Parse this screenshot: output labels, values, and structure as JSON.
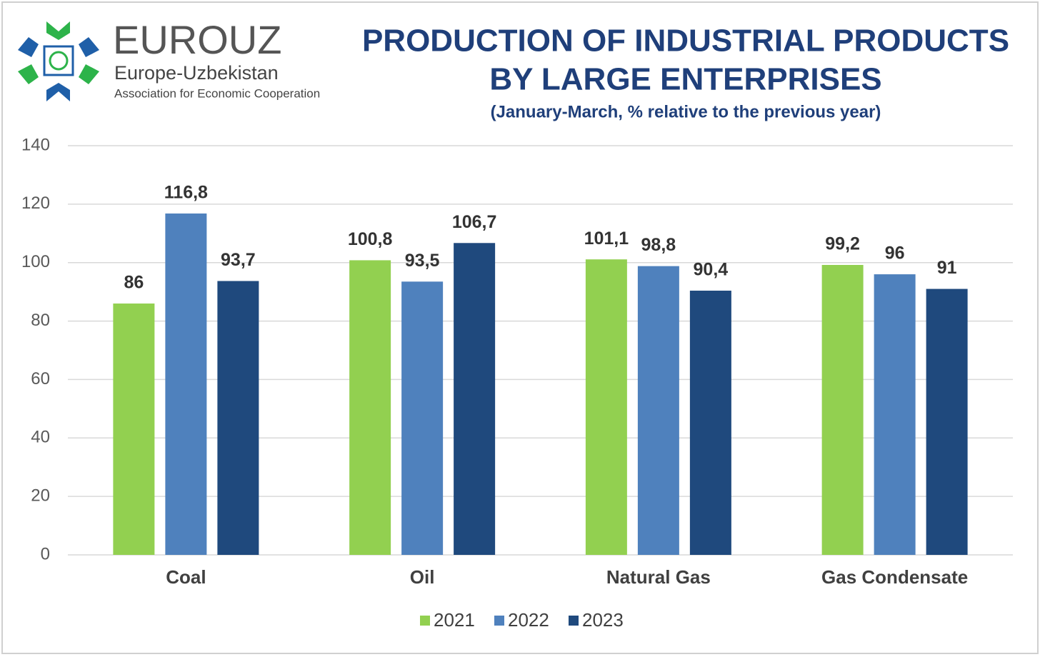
{
  "chart_data": {
    "type": "bar",
    "logo_text": [
      "EUROUZ",
      "Europe-Uzbekistan",
      "Association for Economic Cooperation"
    ],
    "title": [
      "PRODUCTION OF INDUSTRIAL PRODUCTS",
      "BY LARGE  ENTERPRISES"
    ],
    "subtitle": "(January-March, % relative to the previous year)",
    "categories": [
      "Coal",
      "Oil",
      "Natural Gas",
      "Gas Condensate"
    ],
    "series": [
      {
        "name": "2021",
        "color": "#92d050",
        "values": [
          86,
          100.8,
          101.1,
          99.2
        ],
        "value_labels": [
          "86",
          "100,8",
          "101,1",
          "99,2"
        ]
      },
      {
        "name": "2022",
        "color": "#4f81bd",
        "values": [
          116.8,
          93.5,
          98.8,
          96
        ],
        "value_labels": [
          "116,8",
          "93,5",
          "98,8",
          "96"
        ]
      },
      {
        "name": "2023",
        "color": "#1f497d",
        "values": [
          93.7,
          106.7,
          90.4,
          91
        ],
        "value_labels": [
          "93,7",
          "106,7",
          "90,4",
          "91"
        ]
      }
    ],
    "ylim": [
      0,
      140
    ],
    "yticks": [
      0,
      20,
      40,
      60,
      80,
      100,
      120,
      140
    ],
    "grid": true,
    "legend": "bottom"
  }
}
